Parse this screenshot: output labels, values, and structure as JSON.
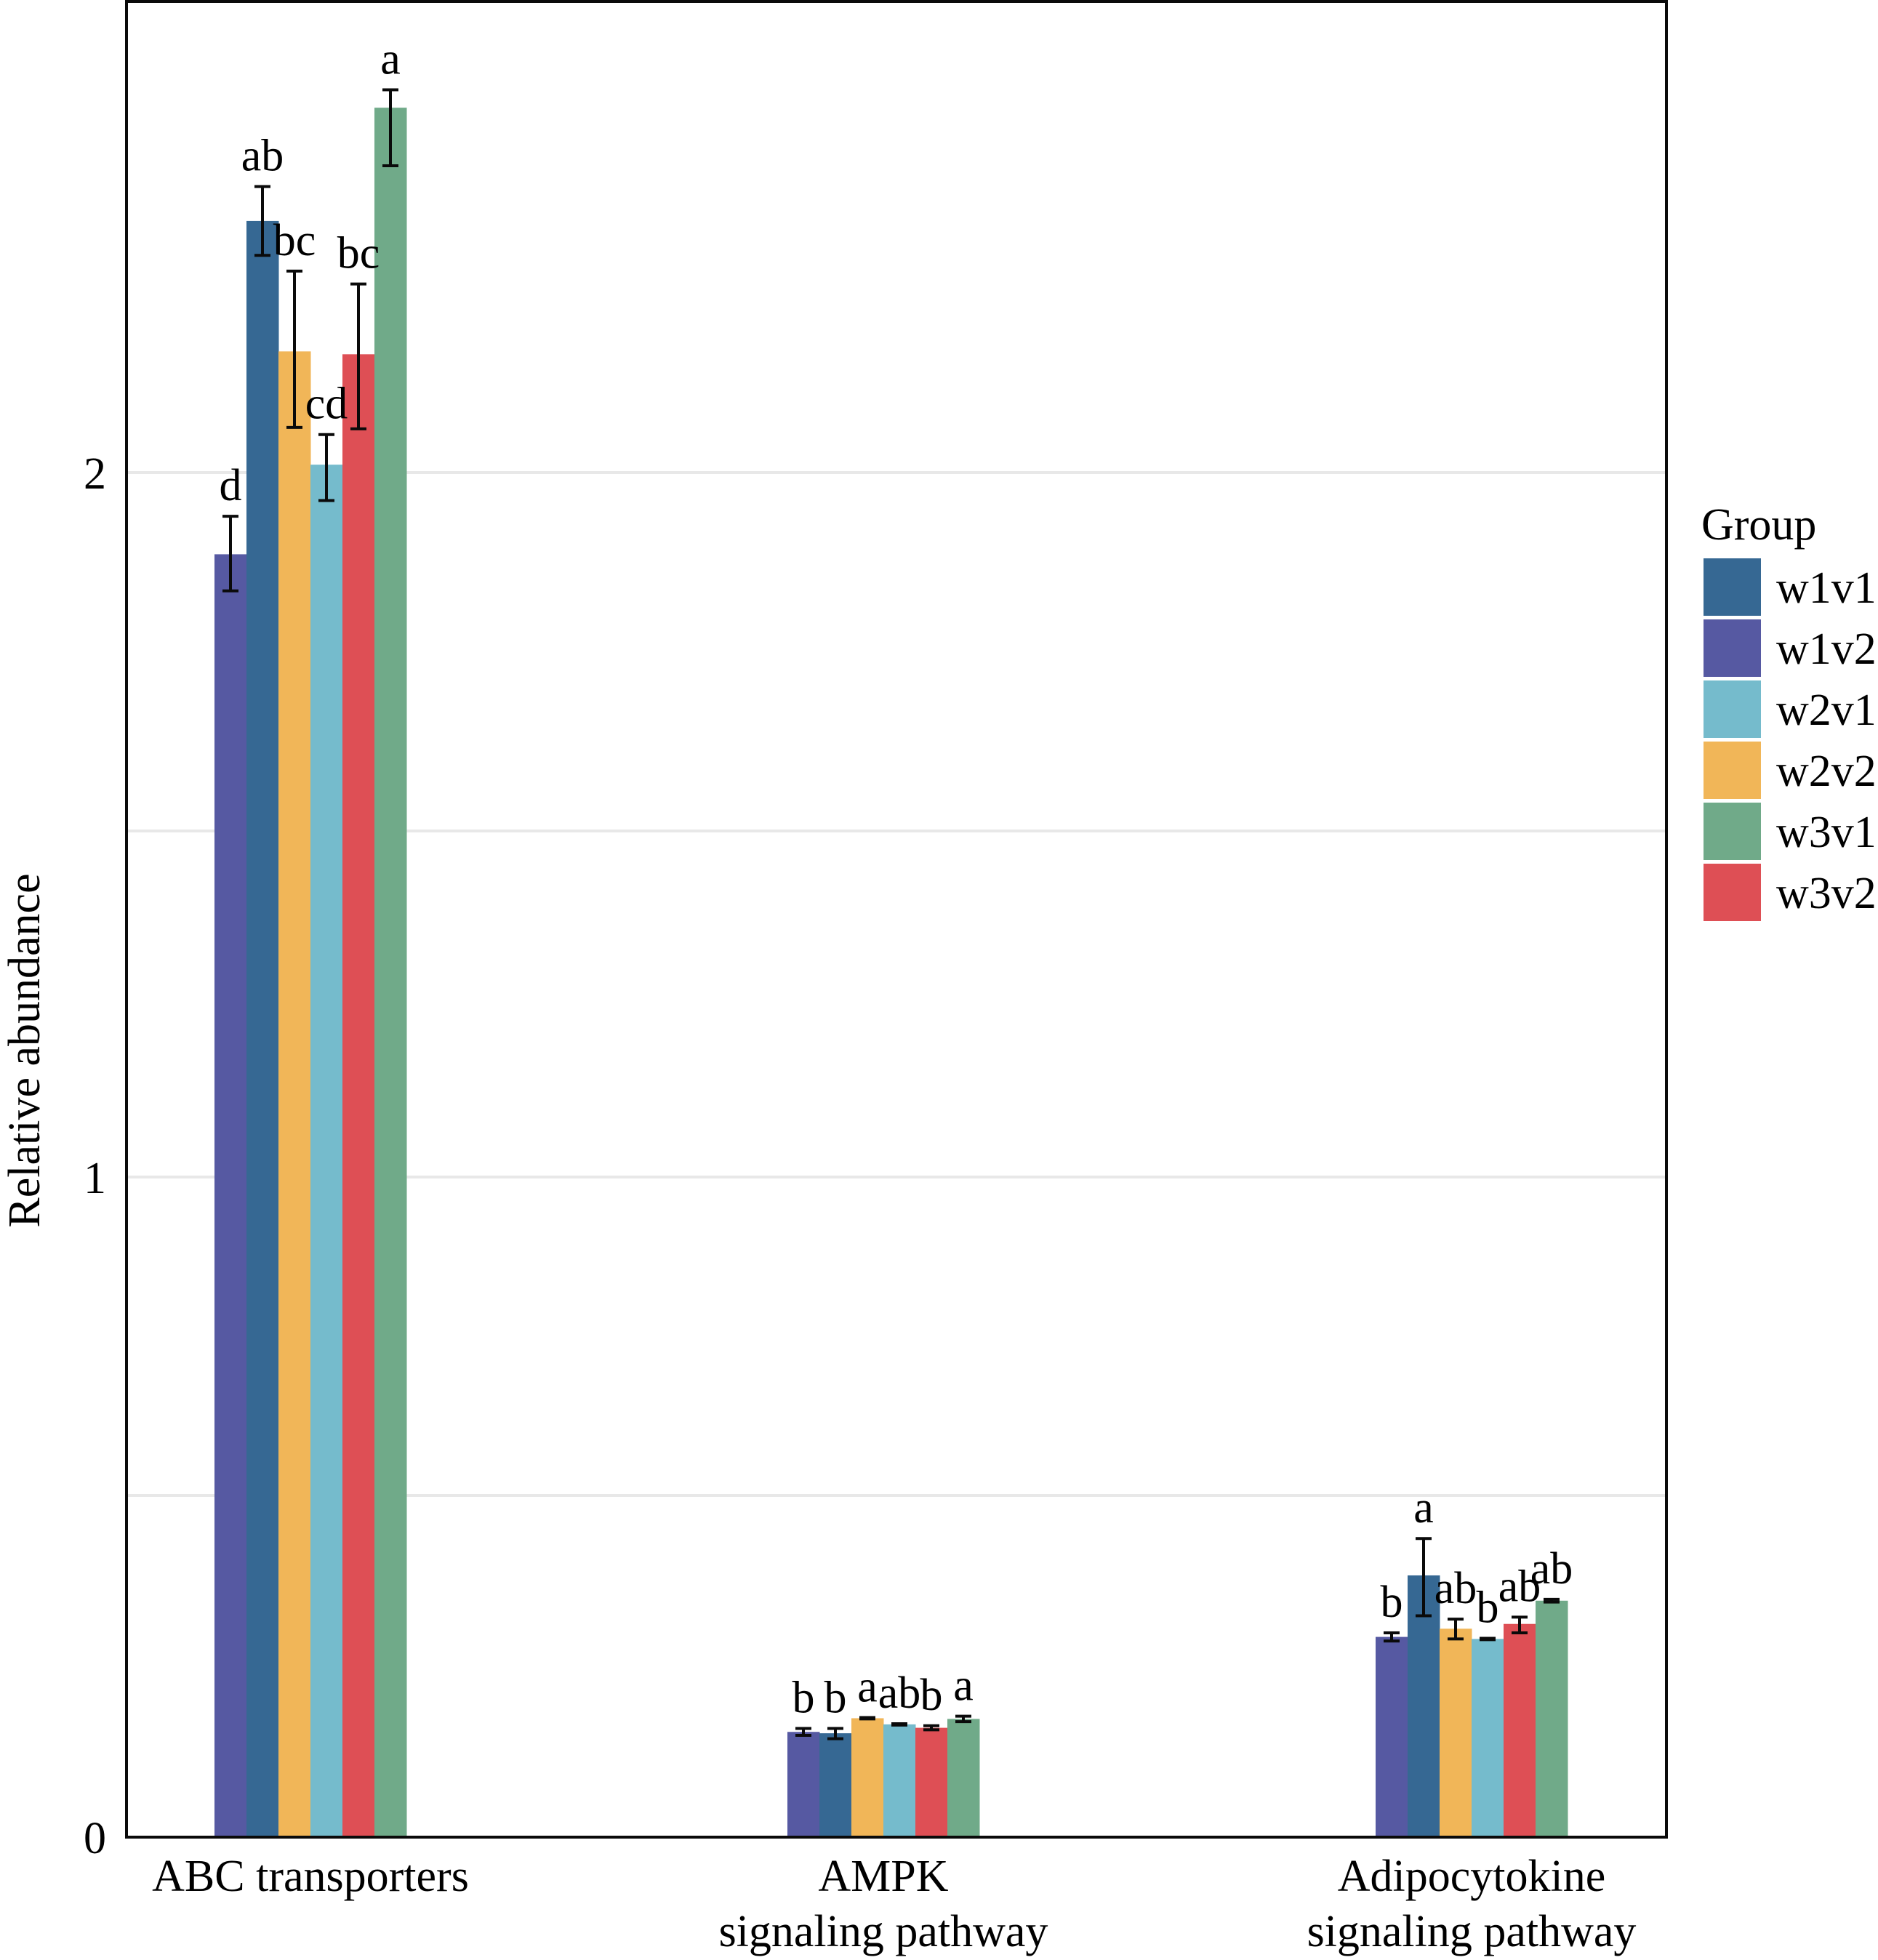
{
  "chart_data": {
    "type": "bar",
    "title": "",
    "xlabel": "",
    "ylabel": "Relative abundance",
    "ylim": [
      0,
      2.6
    ],
    "y_ticks": [
      0,
      1,
      2
    ],
    "y_tick_labels": [
      "0",
      "1",
      "2"
    ],
    "y_minor_gridlines": [
      0.5,
      1.5
    ],
    "grid": true,
    "categories": [
      {
        "line1": "ABC transporters",
        "line2": ""
      },
      {
        "line1": "AMPK",
        "line2": "signaling pathway"
      },
      {
        "line1": "Adipocytokine",
        "line2": "signaling pathway"
      }
    ],
    "bar_order": [
      "w1v2",
      "w1v1",
      "w2v2",
      "w2v1",
      "w3v2",
      "w3v1"
    ],
    "series": [
      {
        "name": "w1v2",
        "color": "#5659A2",
        "values": [
          1.886,
          0.154,
          0.293
        ],
        "err_low": [
          1.835,
          0.149,
          0.287
        ],
        "err_high": [
          1.939,
          0.159,
          0.299
        ],
        "letters": [
          "d",
          "b",
          "b"
        ]
      },
      {
        "name": "w1v1",
        "color": "#366893",
        "values": [
          2.351,
          0.152,
          0.383
        ],
        "err_low": [
          2.303,
          0.144,
          0.324
        ],
        "err_high": [
          2.399,
          0.159,
          0.437
        ],
        "letters": [
          "ab",
          "b",
          "a"
        ]
      },
      {
        "name": "w2v2",
        "color": "#F1B658",
        "values": [
          2.169,
          0.174,
          0.305
        ],
        "err_low": [
          2.063,
          0.173,
          0.29
        ],
        "err_high": [
          2.281,
          0.175,
          0.319
        ],
        "letters": [
          "bc",
          "a",
          "ab"
        ]
      },
      {
        "name": "w2v1",
        "color": "#75BBCC",
        "values": [
          2.011,
          0.165,
          0.29
        ],
        "err_low": [
          1.961,
          0.164,
          0.289
        ],
        "err_high": [
          2.053,
          0.166,
          0.291
        ],
        "letters": [
          "cd",
          "ab",
          "b"
        ]
      },
      {
        "name": "w3v2",
        "color": "#DE4F55",
        "values": [
          2.165,
          0.16,
          0.312
        ],
        "err_low": [
          2.061,
          0.157,
          0.299
        ],
        "err_high": [
          2.263,
          0.163,
          0.322
        ],
        "letters": [
          "bc",
          "b",
          "ab"
        ]
      },
      {
        "name": "w3v1",
        "color": "#70AA89",
        "values": [
          2.509,
          0.173,
          0.346
        ],
        "err_low": [
          2.428,
          0.169,
          0.344
        ],
        "err_high": [
          2.534,
          0.177,
          0.348
        ],
        "letters": [
          "a",
          "a",
          "ab"
        ]
      }
    ],
    "legend": {
      "title": "Group",
      "position": "right",
      "entries": [
        {
          "label": "w1v1",
          "color": "#366893"
        },
        {
          "label": "w1v2",
          "color": "#5659A2"
        },
        {
          "label": "w2v1",
          "color": "#75BBCC"
        },
        {
          "label": "w2v2",
          "color": "#F1B658"
        },
        {
          "label": "w3v1",
          "color": "#70AA89"
        },
        {
          "label": "w3v2",
          "color": "#DE4F55"
        }
      ]
    }
  }
}
